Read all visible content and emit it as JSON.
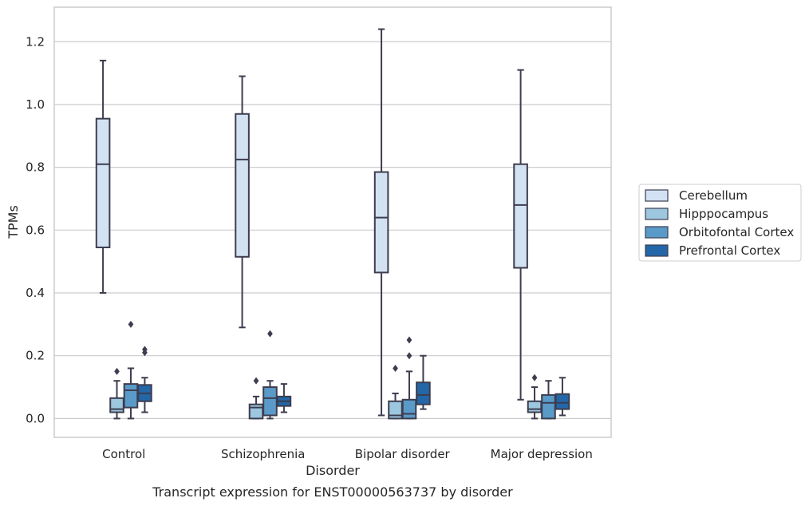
{
  "chart_data": {
    "type": "box",
    "xlabel": "Disorder",
    "ylabel": "TPMs",
    "caption": "Transcript expression for ENST00000563737 by disorder",
    "ylim": [
      -0.06,
      1.31
    ],
    "yticks": [
      "0.0",
      "0.2",
      "0.4",
      "0.6",
      "0.8",
      "1.0",
      "1.2"
    ],
    "grid": "horizontal",
    "legend_position": "right-outside",
    "categories": [
      "Control",
      "Schizophrenia",
      "Bipolar disorder",
      "Major depression"
    ],
    "series": [
      {
        "name": "Cerebellum",
        "color": "#d2e2f2",
        "boxes": [
          {
            "whislo": 0.4,
            "q1": 0.545,
            "med": 0.81,
            "q3": 0.955,
            "whishi": 1.14,
            "fliers": []
          },
          {
            "whislo": 0.29,
            "q1": 0.515,
            "med": 0.825,
            "q3": 0.97,
            "whishi": 1.09,
            "fliers": []
          },
          {
            "whislo": 0.01,
            "q1": 0.465,
            "med": 0.64,
            "q3": 0.785,
            "whishi": 1.24,
            "fliers": []
          },
          {
            "whislo": 0.06,
            "q1": 0.48,
            "med": 0.68,
            "q3": 0.81,
            "whishi": 1.11,
            "fliers": []
          }
        ]
      },
      {
        "name": "Hipppocampus",
        "color": "#9dc6df",
        "boxes": [
          {
            "whislo": 0.0,
            "q1": 0.02,
            "med": 0.03,
            "q3": 0.065,
            "whishi": 0.12,
            "fliers": [
              0.15
            ]
          },
          {
            "whislo": 0.0,
            "q1": 0.0,
            "med": 0.035,
            "q3": 0.045,
            "whishi": 0.07,
            "fliers": [
              0.12
            ]
          },
          {
            "whislo": 0.0,
            "q1": 0.0,
            "med": 0.01,
            "q3": 0.055,
            "whishi": 0.08,
            "fliers": [
              0.16
            ]
          },
          {
            "whislo": 0.0,
            "q1": 0.02,
            "med": 0.03,
            "q3": 0.055,
            "whishi": 0.1,
            "fliers": [
              0.13
            ]
          }
        ]
      },
      {
        "name": "Orbitofontal Cortex",
        "color": "#5a9ac8",
        "boxes": [
          {
            "whislo": 0.0,
            "q1": 0.035,
            "med": 0.09,
            "q3": 0.11,
            "whishi": 0.16,
            "fliers": [
              0.3
            ]
          },
          {
            "whislo": 0.0,
            "q1": 0.01,
            "med": 0.065,
            "q3": 0.1,
            "whishi": 0.12,
            "fliers": [
              0.27
            ]
          },
          {
            "whislo": 0.0,
            "q1": 0.0,
            "med": 0.015,
            "q3": 0.06,
            "whishi": 0.15,
            "fliers": [
              0.2,
              0.25
            ]
          },
          {
            "whislo": 0.0,
            "q1": 0.0,
            "med": 0.05,
            "q3": 0.075,
            "whishi": 0.12,
            "fliers": []
          }
        ]
      },
      {
        "name": "Prefrontal Cortex",
        "color": "#2367a8",
        "boxes": [
          {
            "whislo": 0.02,
            "q1": 0.055,
            "med": 0.08,
            "q3": 0.107,
            "whishi": 0.13,
            "fliers": [
              0.21,
              0.22
            ]
          },
          {
            "whislo": 0.02,
            "q1": 0.04,
            "med": 0.055,
            "q3": 0.07,
            "whishi": 0.11,
            "fliers": []
          },
          {
            "whislo": 0.03,
            "q1": 0.045,
            "med": 0.075,
            "q3": 0.115,
            "whishi": 0.2,
            "fliers": []
          },
          {
            "whislo": 0.01,
            "q1": 0.03,
            "med": 0.05,
            "q3": 0.078,
            "whishi": 0.13,
            "fliers": []
          }
        ]
      }
    ]
  }
}
